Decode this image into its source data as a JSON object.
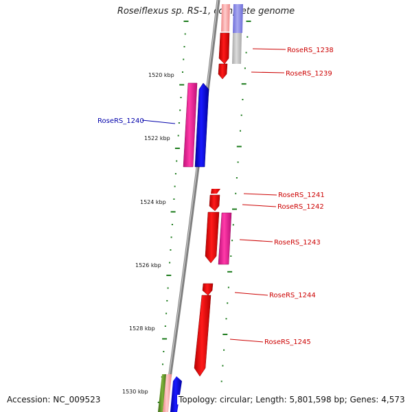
{
  "title": "Roseiflexus sp. RS-1, complete genome",
  "accession_label": "Accession: NC_009523",
  "genome_info": "Topology: circular; Length: 5,801,598 bp; Genes: 4,573",
  "colors": {
    "backbone": "#808080",
    "tick": "#1a7a1a",
    "forward_strand": "#ff0000",
    "reverse_strand": "#0000ff",
    "rna": "#ff1493",
    "other": "#c0c0c0",
    "forward_label": "#cc0000",
    "reverse_label": "#0000aa"
  },
  "kbp_markers": [
    {
      "label": "1520 kbp"
    },
    {
      "label": "1522 kbp"
    },
    {
      "label": "1524 kbp"
    },
    {
      "label": "1526 kbp"
    },
    {
      "label": "1528 kbp"
    },
    {
      "label": "1530 kbp"
    }
  ],
  "gene_labels": [
    {
      "text": "RoseRS_1238",
      "strand": "forward"
    },
    {
      "text": "RoseRS_1239",
      "strand": "forward"
    },
    {
      "text": "RoseRS_1240",
      "strand": "reverse"
    },
    {
      "text": "RoseRS_1241",
      "strand": "forward"
    },
    {
      "text": "RoseRS_1242",
      "strand": "forward"
    },
    {
      "text": "RoseRS_1243",
      "strand": "forward"
    },
    {
      "text": "RoseRS_1244",
      "strand": "forward"
    },
    {
      "text": "RoseRS_1245",
      "strand": "forward"
    }
  ]
}
